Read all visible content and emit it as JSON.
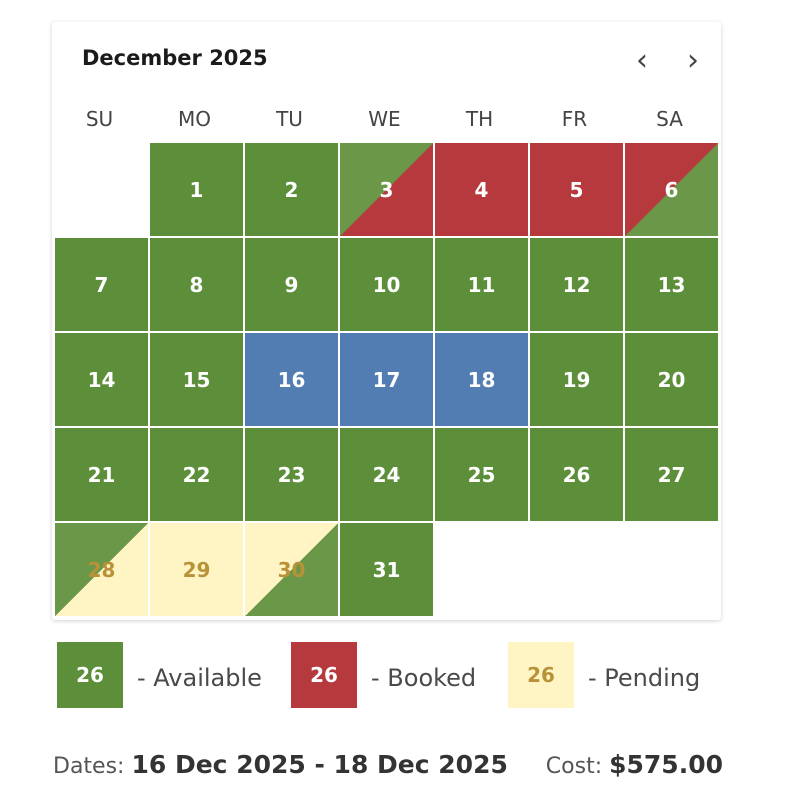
{
  "calendar": {
    "title": "December 2025",
    "prev_icon": "chevron-left-icon",
    "next_icon": "chevron-right-icon",
    "weekdays": [
      "SU",
      "MO",
      "TU",
      "WE",
      "TH",
      "FR",
      "SA"
    ],
    "start_weekday": 1,
    "days": [
      {
        "day": "1",
        "status": "available"
      },
      {
        "day": "2",
        "status": "available"
      },
      {
        "day": "3",
        "status": "available-booked"
      },
      {
        "day": "4",
        "status": "booked"
      },
      {
        "day": "5",
        "status": "booked"
      },
      {
        "day": "6",
        "status": "booked-available"
      },
      {
        "day": "7",
        "status": "available"
      },
      {
        "day": "8",
        "status": "available"
      },
      {
        "day": "9",
        "status": "available"
      },
      {
        "day": "10",
        "status": "available"
      },
      {
        "day": "11",
        "status": "available"
      },
      {
        "day": "12",
        "status": "available"
      },
      {
        "day": "13",
        "status": "available"
      },
      {
        "day": "14",
        "status": "available"
      },
      {
        "day": "15",
        "status": "available"
      },
      {
        "day": "16",
        "status": "selected"
      },
      {
        "day": "17",
        "status": "selected"
      },
      {
        "day": "18",
        "status": "selected"
      },
      {
        "day": "19",
        "status": "available"
      },
      {
        "day": "20",
        "status": "available"
      },
      {
        "day": "21",
        "status": "available"
      },
      {
        "day": "22",
        "status": "available"
      },
      {
        "day": "23",
        "status": "available"
      },
      {
        "day": "24",
        "status": "available"
      },
      {
        "day": "25",
        "status": "available"
      },
      {
        "day": "26",
        "status": "available"
      },
      {
        "day": "27",
        "status": "available"
      },
      {
        "day": "28",
        "status": "available-pending"
      },
      {
        "day": "29",
        "status": "pending"
      },
      {
        "day": "30",
        "status": "pending-available"
      },
      {
        "day": "31",
        "status": "available"
      }
    ]
  },
  "legend": [
    {
      "sample": "26",
      "label": "- Available",
      "color": "#5d8f3a",
      "text_color": "#ffffff"
    },
    {
      "sample": "26",
      "label": "- Booked",
      "color": "#b6393d",
      "text_color": "#ffffff"
    },
    {
      "sample": "26",
      "label": "- Pending",
      "color": "#fef4c4",
      "text_color": "#b99237"
    }
  ],
  "colors": {
    "available": "#5d8f3a",
    "booked": "#b6393d",
    "selected": "#527db2",
    "pending": "#fef4c4"
  },
  "summary": {
    "dates_label": "Dates:",
    "dates_value": "16 Dec 2025 - 18 Dec 2025",
    "cost_label": "Cost:",
    "cost_value": "$575.00"
  }
}
